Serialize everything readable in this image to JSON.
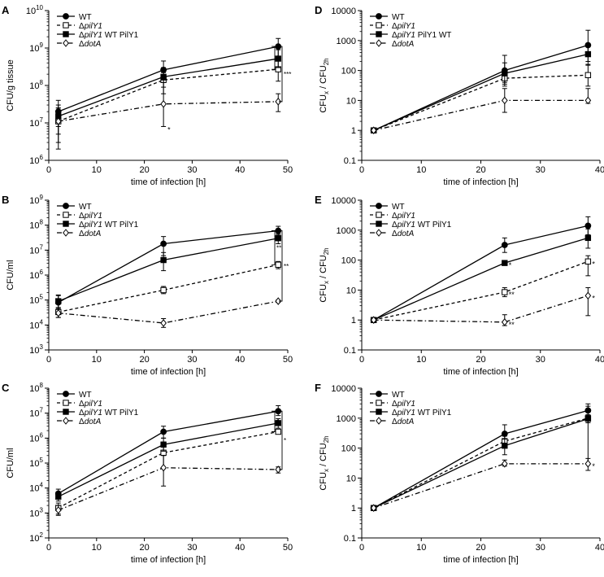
{
  "chart_data": [
    {
      "panel": "A",
      "type": "line",
      "xlabel": "time of infection [h]",
      "ylabel": "CFU/g tissue",
      "yscale": "log",
      "xlim": [
        0,
        50
      ],
      "ylim_exp": [
        6,
        10
      ],
      "xticks": [
        0,
        10,
        20,
        30,
        40,
        50
      ],
      "ytick_labels": [
        "10^6",
        "10^7",
        "10^8",
        "10^9",
        "10^10"
      ],
      "x": [
        2,
        24,
        48
      ],
      "series": [
        {
          "name": "WT",
          "style": "WT",
          "values": [
            20000000,
            260000000,
            1100000000
          ],
          "err_low": [
            8000000,
            120000000,
            600000000
          ],
          "err_high": [
            40000000,
            450000000,
            1800000000
          ]
        },
        {
          "name": "ΔpilY1",
          "style": "PILY",
          "values": [
            11000000,
            140000000,
            270000000
          ],
          "err_low": [
            3000000,
            60000000,
            130000000
          ],
          "err_high": [
            25000000,
            220000000,
            450000000
          ]
        },
        {
          "name": "ΔpilY1 WT PilY1",
          "style": "COMP",
          "values": [
            15000000,
            170000000,
            520000000
          ],
          "err_low": [
            5000000,
            90000000,
            300000000
          ],
          "err_high": [
            30000000,
            300000000,
            900000000
          ]
        },
        {
          "name": "ΔdotA",
          "style": "DOT",
          "values": [
            11000000,
            32000000,
            37000000
          ],
          "err_low": [
            2000000,
            8000000,
            20000000
          ],
          "err_high": [
            25000000,
            140000000,
            60000000
          ]
        }
      ],
      "annotations": [
        {
          "text": "*",
          "x": 24,
          "y": 7600000,
          "series": "ΔdotA"
        }
      ],
      "brackets": [
        {
          "top": 1100000000,
          "bottom": 270000000,
          "text": "*"
        },
        {
          "top": 1100000000,
          "bottom": 37000000,
          "text": "***"
        }
      ]
    },
    {
      "panel": "B",
      "type": "line",
      "xlabel": "time of infection [h]",
      "ylabel": "CFU/ml",
      "yscale": "log",
      "xlim": [
        0,
        50
      ],
      "ylim_exp": [
        3,
        9
      ],
      "xticks": [
        0,
        10,
        20,
        30,
        40,
        50
      ],
      "ytick_labels": [
        "10^3",
        "10^4",
        "10^5",
        "10^6",
        "10^7",
        "10^8",
        "10^9"
      ],
      "x": [
        2,
        24,
        48
      ],
      "series": [
        {
          "name": "WT",
          "style": "WT",
          "values": [
            80000,
            18000000,
            60000000
          ],
          "err_low": [
            40000,
            6000000,
            40000000
          ],
          "err_high": [
            150000,
            35000000,
            90000000
          ]
        },
        {
          "name": "ΔpilY1",
          "style": "PILY",
          "values": [
            33000,
            250000,
            2600000
          ],
          "err_low": [
            20000,
            180000,
            1800000
          ],
          "err_high": [
            50000,
            350000,
            3500000
          ]
        },
        {
          "name": "ΔpilY1 WT PilY1",
          "style": "COMP",
          "values": [
            90000,
            4000000,
            30000000
          ],
          "err_low": [
            50000,
            1500000,
            18000000
          ],
          "err_high": [
            160000,
            8000000,
            45000000
          ]
        },
        {
          "name": "ΔdotA",
          "style": "DOT",
          "values": [
            30000,
            12000,
            90000
          ],
          "err_low": [
            20000,
            8000,
            80000
          ],
          "err_high": [
            45000,
            18000,
            100000
          ]
        }
      ],
      "annotations": [],
      "brackets": [
        {
          "top": 60000000,
          "bottom": 2600000,
          "text": "**"
        },
        {
          "top": 60000000,
          "bottom": 90000,
          "text": "**"
        }
      ]
    },
    {
      "panel": "C",
      "type": "line",
      "xlabel": "time of infection [h]",
      "ylabel": "CFU/ml",
      "yscale": "log",
      "xlim": [
        0,
        50
      ],
      "ylim_exp": [
        2,
        8
      ],
      "xticks": [
        0,
        10,
        20,
        30,
        40,
        50
      ],
      "ytick_labels": [
        "10^2",
        "10^3",
        "10^4",
        "10^5",
        "10^6",
        "10^7",
        "10^8"
      ],
      "x": [
        2,
        24,
        48
      ],
      "series": [
        {
          "name": "WT",
          "style": "WT",
          "values": [
            6000,
            1800000,
            12000000
          ],
          "err_low": [
            4000,
            1000000,
            8000000
          ],
          "err_high": [
            9000,
            3000000,
            20000000
          ]
        },
        {
          "name": "ΔpilY1",
          "style": "PILY",
          "values": [
            1600,
            260000,
            1800000
          ],
          "err_low": [
            900,
            60000,
            1500000
          ],
          "err_high": [
            2500,
            700000,
            2200000
          ]
        },
        {
          "name": "ΔpilY1 WT PilY1",
          "style": "COMP",
          "values": [
            4500,
            550000,
            4000000
          ],
          "err_low": [
            3000,
            300000,
            2500000
          ],
          "err_high": [
            7000,
            1000000,
            6000000
          ]
        },
        {
          "name": "ΔdotA",
          "style": "DOT",
          "values": [
            1300,
            65000,
            55000
          ],
          "err_low": [
            800,
            12000,
            40000
          ],
          "err_high": [
            2000,
            200000,
            70000
          ]
        }
      ],
      "annotations": [],
      "brackets": [
        {
          "top": 12000000,
          "bottom": 1800000,
          "text": "*"
        },
        {
          "top": 12000000,
          "bottom": 55000,
          "text": "*"
        }
      ]
    },
    {
      "panel": "D",
      "type": "line",
      "xlabel": "time of infection [h]",
      "ylabel": "CFUx / CFU2h",
      "yscale": "log",
      "xlim": [
        0,
        40
      ],
      "ylim_exp": [
        -1,
        4
      ],
      "xticks": [
        0,
        10,
        20,
        30,
        40
      ],
      "ytick_labels": [
        "0.1",
        "1",
        "10",
        "100",
        "1000",
        "10000"
      ],
      "x": [
        2,
        24,
        38
      ],
      "series": [
        {
          "name": "WT",
          "style": "WT",
          "values": [
            1,
            100,
            700
          ],
          "err_low": [
            1,
            30,
            200
          ],
          "err_high": [
            1,
            320,
            2200
          ]
        },
        {
          "name": "ΔpilY1",
          "style": "PILY",
          "values": [
            1,
            55,
            70
          ],
          "err_low": [
            1,
            35,
            30
          ],
          "err_high": [
            1,
            80,
            160
          ]
        },
        {
          "name": "ΔpilY1 PilY1 WT",
          "style": "COMP",
          "values": [
            1,
            80,
            350
          ],
          "err_low": [
            1,
            40,
            150
          ],
          "err_high": [
            1,
            180,
            800
          ]
        },
        {
          "name": "ΔdotA",
          "style": "DOT",
          "values": [
            1,
            10,
            10
          ],
          "err_low": [
            1,
            4,
            8
          ],
          "err_high": [
            1,
            25,
            25
          ]
        }
      ],
      "annotations": [],
      "brackets": []
    },
    {
      "panel": "E",
      "type": "line",
      "xlabel": "time of infection [h]",
      "ylabel": "CFUx / CFU2h",
      "yscale": "log",
      "xlim": [
        0,
        40
      ],
      "ylim_exp": [
        -1,
        4
      ],
      "xticks": [
        0,
        10,
        20,
        30,
        40
      ],
      "ytick_labels": [
        "0.1",
        "1",
        "10",
        "100",
        "1000",
        "10000"
      ],
      "x": [
        2,
        24,
        38
      ],
      "series": [
        {
          "name": "WT",
          "style": "WT",
          "values": [
            1,
            320,
            1400
          ],
          "err_low": [
            1,
            180,
            700
          ],
          "err_high": [
            1,
            550,
            2800
          ]
        },
        {
          "name": "ΔpilY1",
          "style": "PILY",
          "values": [
            1,
            8.5,
            90
          ],
          "err_low": [
            1,
            6,
            30
          ],
          "err_high": [
            1,
            12,
            140
          ]
        },
        {
          "name": "ΔpilY1 WT PilY1",
          "style": "COMP",
          "values": [
            1,
            80,
            550
          ],
          "err_low": [
            1,
            70,
            250
          ],
          "err_high": [
            1,
            95,
            1100
          ]
        },
        {
          "name": "ΔdotA",
          "style": "DOT",
          "values": [
            1,
            0.85,
            6.5
          ],
          "err_low": [
            1,
            0.65,
            1.4
          ],
          "err_high": [
            1,
            1.5,
            12
          ]
        }
      ],
      "annotations": [
        {
          "text": "*",
          "x": 24,
          "y": 80,
          "series": "ΔpilY1 WT PilY1"
        },
        {
          "text": "**",
          "x": 24,
          "y": 8.5,
          "series": "ΔpilY1"
        },
        {
          "text": "**",
          "x": 24,
          "y": 0.85,
          "series": "ΔdotA"
        },
        {
          "text": "*",
          "x": 38,
          "y": 90,
          "series": "ΔpilY1"
        },
        {
          "text": "*",
          "x": 38,
          "y": 6.5,
          "series": "ΔdotA"
        }
      ],
      "brackets": []
    },
    {
      "panel": "F",
      "type": "line",
      "xlabel": "time of infection [h]",
      "ylabel": "CFUx / CFU2h",
      "yscale": "log",
      "xlim": [
        0,
        40
      ],
      "ylim_exp": [
        -1,
        4
      ],
      "xticks": [
        0,
        10,
        20,
        30,
        40
      ],
      "ytick_labels": [
        "0.1",
        "1",
        "10",
        "100",
        "1000",
        "10000"
      ],
      "x": [
        2,
        24,
        38
      ],
      "series": [
        {
          "name": "WT",
          "style": "WT",
          "values": [
            1,
            300,
            1800
          ],
          "err_low": [
            1,
            180,
            1000
          ],
          "err_high": [
            1,
            600,
            3000
          ]
        },
        {
          "name": "ΔpilY1",
          "style": "PILY",
          "values": [
            1,
            170,
            1000
          ],
          "err_low": [
            1,
            120,
            700
          ],
          "err_high": [
            1,
            250,
            1300
          ]
        },
        {
          "name": "ΔpilY1 WT PilY1",
          "style": "COMP",
          "values": [
            1,
            120,
            950
          ],
          "err_low": [
            1,
            60,
            30
          ],
          "err_high": [
            1,
            200,
            2500
          ]
        },
        {
          "name": "ΔdotA",
          "style": "DOT",
          "values": [
            1,
            30,
            30
          ],
          "err_low": [
            1,
            25,
            18
          ],
          "err_high": [
            1,
            40,
            45
          ]
        }
      ],
      "annotations": [
        {
          "text": "*",
          "x": 38,
          "y": 30,
          "series": "ΔdotA"
        }
      ],
      "brackets": []
    }
  ]
}
